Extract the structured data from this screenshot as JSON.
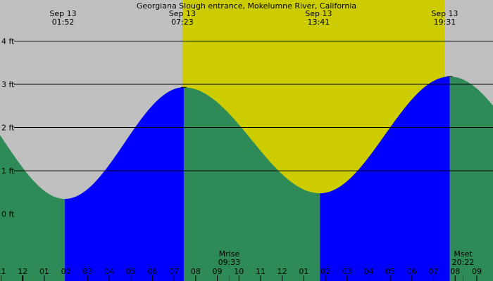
{
  "chart_data": {
    "type": "area",
    "title": "Georgiana Slough entrance, Mokelumne River, California",
    "date_labels": [
      {
        "date": "Sep 13",
        "time": "01:52",
        "hour": 1.8667
      },
      {
        "date": "Sep 13",
        "time": "07:23",
        "hour": 7.3833
      },
      {
        "date": "Sep 13",
        "time": "13:41",
        "hour": 13.6833
      },
      {
        "date": "Sep 13",
        "time": "19:31",
        "hour": 19.5167
      }
    ],
    "y_ticks": [
      {
        "value": 0,
        "label": "0 ft"
      },
      {
        "value": 1,
        "label": "1 ft"
      },
      {
        "value": 2,
        "label": "2 ft"
      },
      {
        "value": 3,
        "label": "3 ft"
      },
      {
        "value": 4,
        "label": "4 ft"
      }
    ],
    "x_ticks": [
      {
        "hour": -1,
        "label": "11"
      },
      {
        "hour": 0,
        "label": "12"
      },
      {
        "hour": 1,
        "label": "01"
      },
      {
        "hour": 2,
        "label": "02"
      },
      {
        "hour": 3,
        "label": "03"
      },
      {
        "hour": 4,
        "label": "04"
      },
      {
        "hour": 5,
        "label": "05"
      },
      {
        "hour": 6,
        "label": "06"
      },
      {
        "hour": 7,
        "label": "07"
      },
      {
        "hour": 8,
        "label": "08"
      },
      {
        "hour": 9,
        "label": "09"
      },
      {
        "hour": 10,
        "label": "10"
      },
      {
        "hour": 11,
        "label": "11"
      },
      {
        "hour": 12,
        "label": "12"
      },
      {
        "hour": 13,
        "label": "01"
      },
      {
        "hour": 14,
        "label": "02"
      },
      {
        "hour": 15,
        "label": "03"
      },
      {
        "hour": 16,
        "label": "04"
      },
      {
        "hour": 17,
        "label": "05"
      },
      {
        "hour": 18,
        "label": "06"
      },
      {
        "hour": 19,
        "label": "07"
      },
      {
        "hour": 20,
        "label": "08"
      },
      {
        "hour": 21,
        "label": "09"
      }
    ],
    "x_range_hours": [
      -1.05,
      21.75
    ],
    "y_range_ft": [
      -1.55,
      4.95
    ],
    "daylight_hours": [
      7.3833,
      19.5167
    ],
    "tide_events": [
      {
        "type": "low",
        "hour": 1.95,
        "height_ft": 0.35
      },
      {
        "type": "high",
        "hour": 7.45,
        "height_ft": 2.93
      },
      {
        "type": "low",
        "hour": 13.75,
        "height_ft": 0.48
      },
      {
        "type": "high",
        "hour": 19.75,
        "height_ft": 3.18
      }
    ],
    "moon_events": [
      {
        "label": "Mrise",
        "time": "09:33",
        "hour": 9.55
      },
      {
        "label": "Mset",
        "time": "20:22",
        "hour": 20.3667
      }
    ],
    "grid": true,
    "colors": {
      "background": "#c0c0c0",
      "daylight": "#cccc00",
      "rising_tide": "#0000ff",
      "falling_tide": "#2e8b57",
      "moon_tick": "#ff0000"
    }
  }
}
